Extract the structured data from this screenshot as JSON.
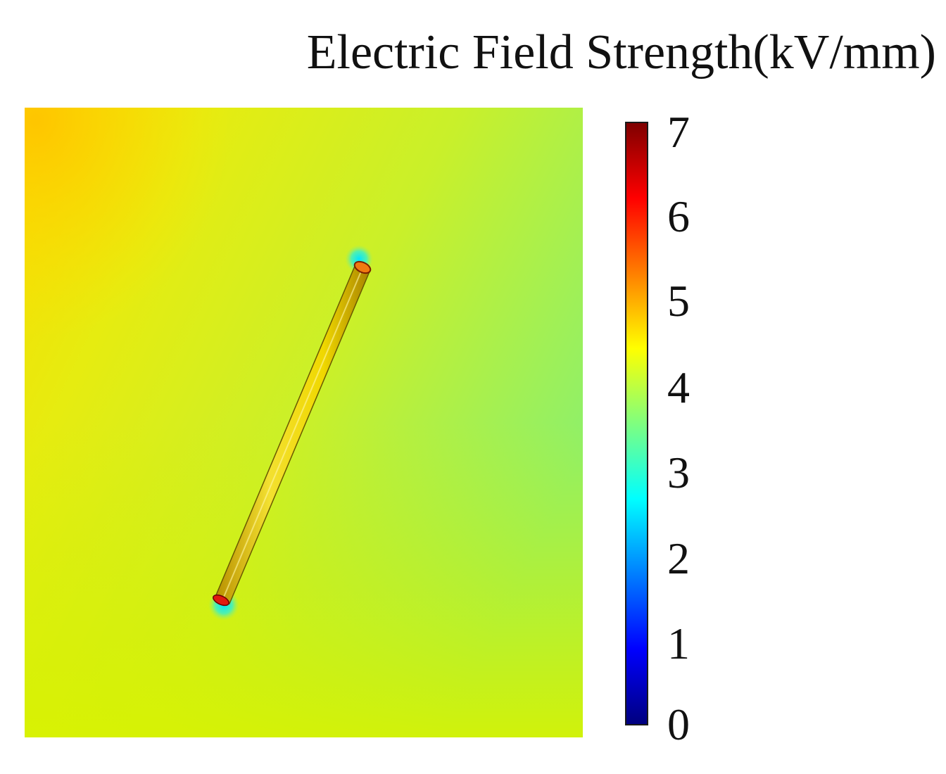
{
  "title": "Electric Field Strength(kV/mm)",
  "colorbar": {
    "min": 0,
    "max": 7,
    "ticks": [
      "7",
      "6",
      "5",
      "4",
      "3",
      "2",
      "1",
      "0"
    ],
    "colormap": [
      "#00007f",
      "#0000ff",
      "#007fff",
      "#00ffff",
      "#7fff7f",
      "#ffff00",
      "#ff7f00",
      "#ff0000",
      "#7f0000"
    ]
  },
  "field": {
    "background_level_range": [
      4.3,
      5.2
    ],
    "rod_level": 5.0,
    "rod_end_level": 6.5,
    "rod_tip_level": 2.5
  }
}
